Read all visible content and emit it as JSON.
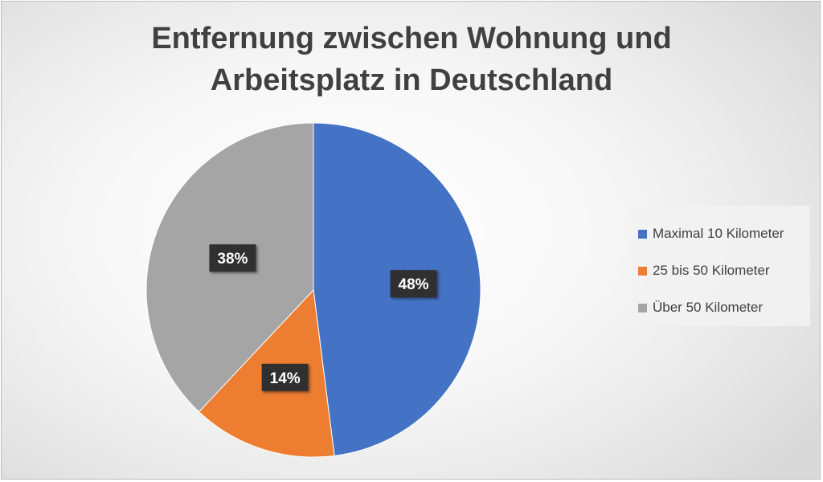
{
  "chart_data": {
    "type": "pie",
    "title_lines": [
      "Entfernung zwischen Wohnung und",
      "Arbeitsplatz in Deutschland"
    ],
    "categories": [
      "Maximal 10 Kilometer",
      "25 bis 50 Kilometer",
      "Über 50 Kilometer"
    ],
    "values": [
      48,
      14,
      38
    ],
    "data_labels": [
      "48%",
      "14%",
      "38%"
    ],
    "colors": [
      "#4472C4",
      "#ED7D31",
      "#A5A5A5"
    ],
    "start_angle": "12 o'clock",
    "direction": "clockwise",
    "legend_position": "right"
  }
}
